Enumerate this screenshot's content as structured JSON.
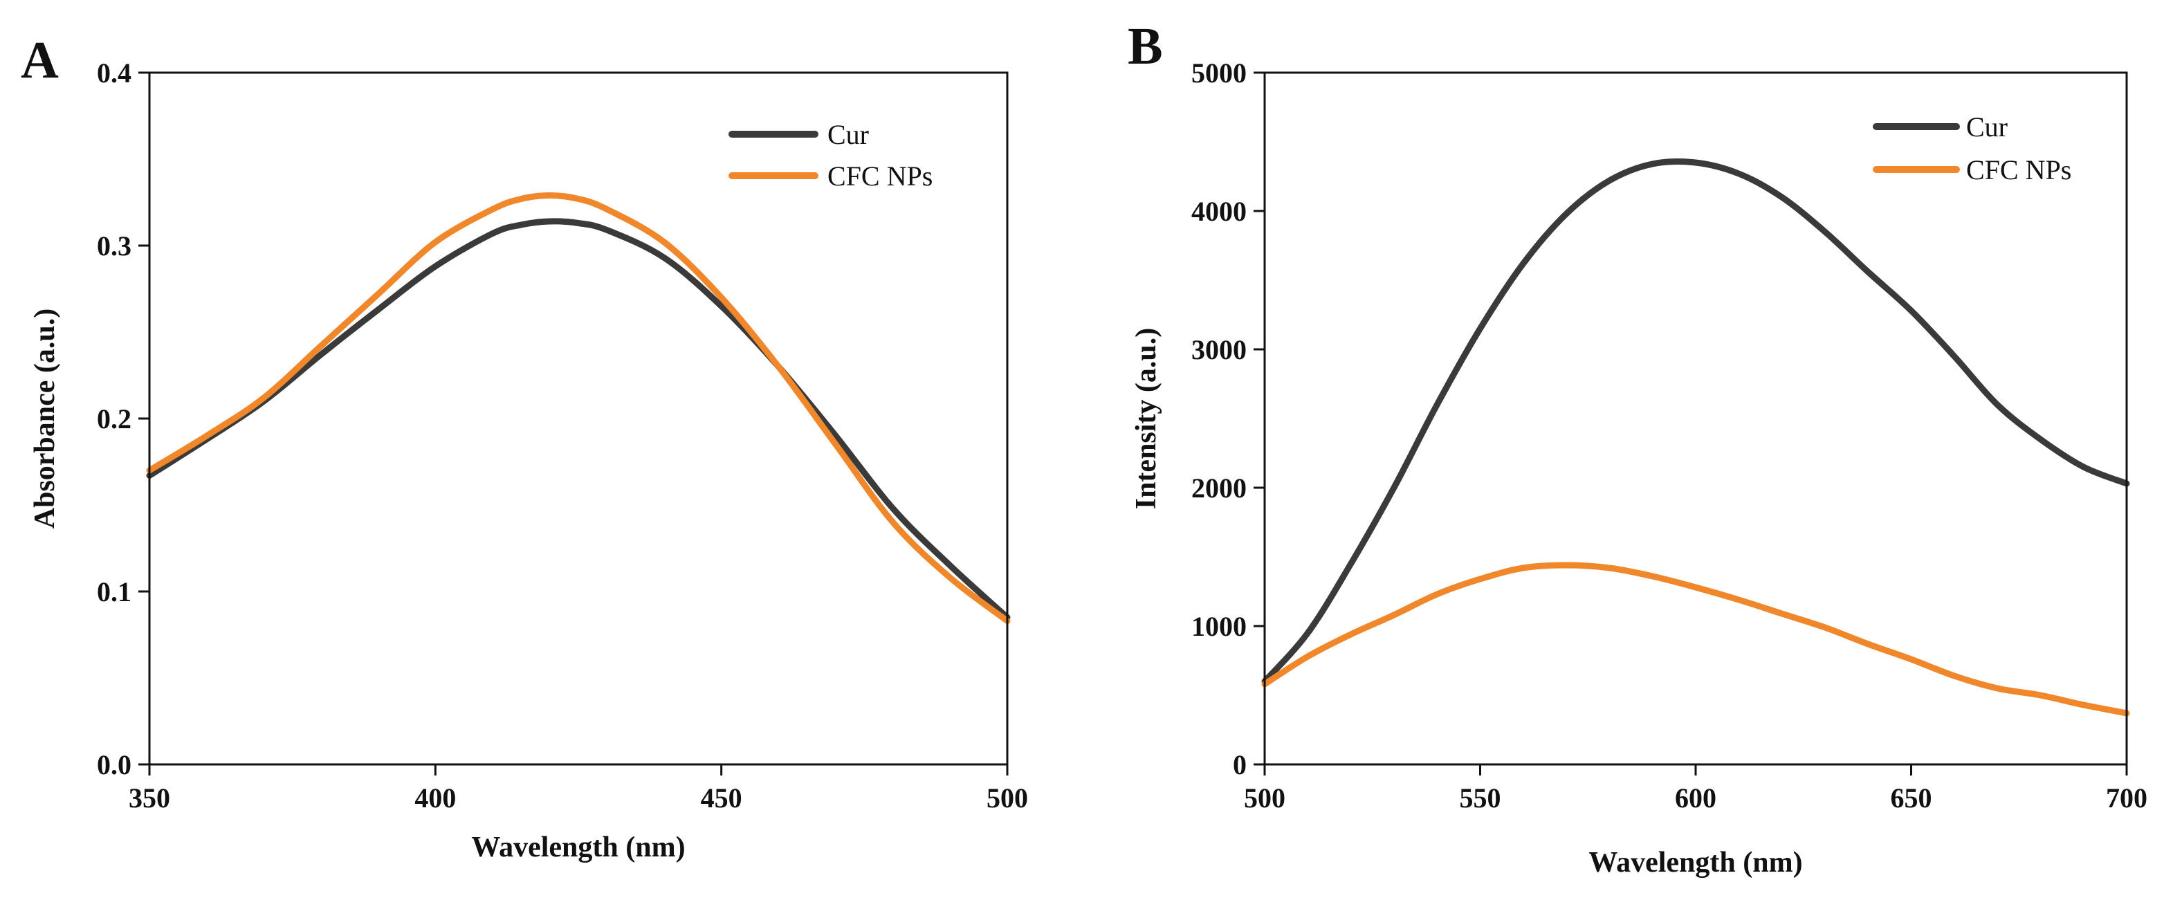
{
  "chart_data": [
    {
      "panel": "A",
      "type": "line",
      "xlabel": "Wavelength (nm)",
      "ylabel": "Absorbance (a.u.)",
      "xlim": [
        350,
        500
      ],
      "ylim": [
        0.0,
        0.4
      ],
      "xticks": [
        "350",
        "400",
        "450",
        "500"
      ],
      "yticks": [
        "0.0",
        "0.1",
        "0.2",
        "0.3",
        "0.4"
      ],
      "legend_position": "top-right",
      "grid": false,
      "series": [
        {
          "name": "Cur",
          "color": "#3a3a3a",
          "x": [
            350,
            360,
            370,
            380,
            390,
            400,
            410,
            415,
            420,
            425,
            430,
            440,
            450,
            460,
            470,
            480,
            490,
            500
          ],
          "y": [
            0.167,
            0.188,
            0.21,
            0.237,
            0.263,
            0.288,
            0.307,
            0.312,
            0.314,
            0.313,
            0.309,
            0.293,
            0.265,
            0.23,
            0.19,
            0.148,
            0.115,
            0.085
          ]
        },
        {
          "name": "CFC NPs",
          "color": "#f0872a",
          "x": [
            350,
            360,
            370,
            380,
            390,
            400,
            410,
            415,
            420,
            425,
            430,
            440,
            450,
            460,
            470,
            480,
            490,
            500
          ],
          "y": [
            0.17,
            0.19,
            0.212,
            0.242,
            0.272,
            0.302,
            0.321,
            0.327,
            0.329,
            0.327,
            0.321,
            0.302,
            0.27,
            0.23,
            0.185,
            0.14,
            0.108,
            0.083
          ]
        }
      ]
    },
    {
      "panel": "B",
      "type": "line",
      "xlabel": "Wavelength (nm)",
      "ylabel": "Intensity (a.u.)",
      "xlim": [
        500,
        700
      ],
      "ylim": [
        0,
        5000
      ],
      "xticks": [
        "500",
        "550",
        "600",
        "650",
        "700"
      ],
      "yticks": [
        "0",
        "1000",
        "2000",
        "3000",
        "4000",
        "5000"
      ],
      "legend_position": "top-right",
      "grid": false,
      "series": [
        {
          "name": "Cur",
          "color": "#3a3a3a",
          "x": [
            500,
            510,
            520,
            530,
            540,
            550,
            560,
            570,
            580,
            590,
            600,
            610,
            620,
            630,
            640,
            650,
            660,
            670,
            680,
            690,
            700
          ],
          "y": [
            600,
            950,
            1450,
            2000,
            2600,
            3150,
            3620,
            3980,
            4220,
            4340,
            4350,
            4270,
            4100,
            3850,
            3560,
            3280,
            2950,
            2600,
            2350,
            2150,
            2030
          ]
        },
        {
          "name": "CFC NPs",
          "color": "#f0872a",
          "x": [
            500,
            510,
            520,
            530,
            540,
            550,
            560,
            570,
            580,
            590,
            600,
            610,
            620,
            630,
            640,
            650,
            660,
            670,
            680,
            690,
            700
          ],
          "y": [
            580,
            780,
            940,
            1080,
            1230,
            1340,
            1420,
            1440,
            1420,
            1360,
            1280,
            1190,
            1090,
            990,
            870,
            760,
            640,
            550,
            500,
            430,
            370
          ]
        }
      ]
    }
  ]
}
